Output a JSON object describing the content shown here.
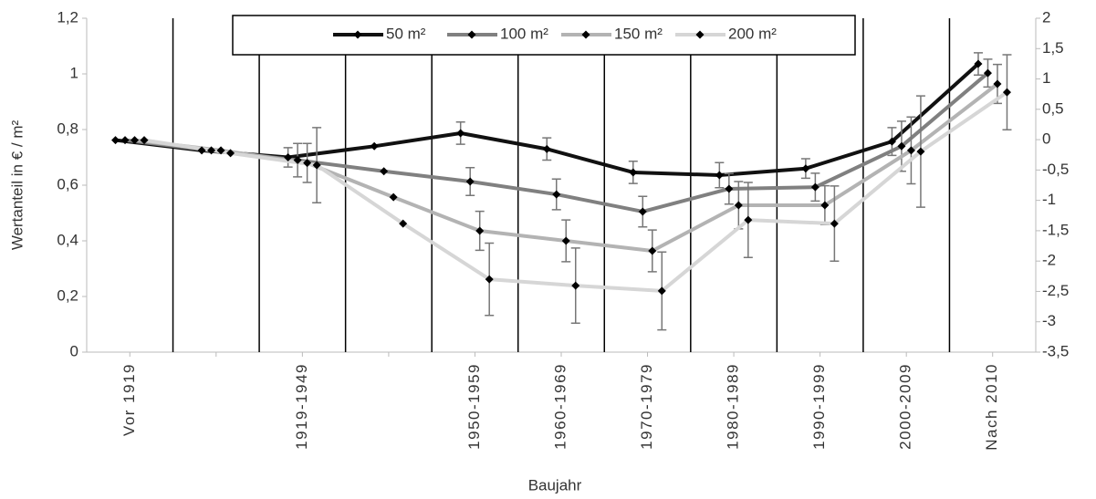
{
  "chart_data": {
    "type": "line",
    "y_label": "Wertanteil in € / m²",
    "x_label": "Baujahr",
    "categories": [
      "Vor 1919",
      null,
      "1919-1949",
      null,
      "1950-1959",
      "1960-1969",
      "1970-1979",
      "1980-1989",
      "1990-1999",
      "2000-2009",
      "Nach 2010"
    ],
    "series": [
      {
        "name": "50 m²",
        "color": "#111111",
        "values": [
          0.762,
          0.725,
          0.7,
          0.74,
          0.787,
          0.73,
          0.646,
          0.636,
          0.66,
          0.757,
          1.036
        ],
        "errors": [
          null,
          null,
          0.035,
          null,
          0.04,
          0.04,
          0.04,
          0.045,
          0.035,
          0.05,
          0.04
        ]
      },
      {
        "name": "100 m²",
        "color": "#808080",
        "values": [
          0.762,
          0.725,
          0.69,
          0.65,
          0.613,
          0.567,
          0.505,
          0.587,
          0.593,
          0.74,
          1.003
        ],
        "errors": [
          null,
          null,
          0.06,
          null,
          0.05,
          0.055,
          0.055,
          0.055,
          0.05,
          0.09,
          0.05
        ]
      },
      {
        "name": "150 m²",
        "color": "#b3b3b3",
        "values": [
          0.762,
          0.725,
          0.68,
          0.557,
          0.436,
          0.4,
          0.364,
          0.528,
          0.528,
          0.725,
          0.964
        ],
        "errors": [
          null,
          null,
          0.07,
          null,
          0.07,
          0.075,
          0.075,
          0.085,
          0.07,
          0.12,
          0.07
        ]
      },
      {
        "name": "200 m²",
        "color": "#d6d6d6",
        "values": [
          0.762,
          0.715,
          0.672,
          0.462,
          0.262,
          0.239,
          0.22,
          0.475,
          0.462,
          0.721,
          0.934
        ],
        "errors": [
          null,
          null,
          0.135,
          null,
          0.13,
          0.135,
          0.14,
          0.135,
          0.135,
          0.2,
          0.135
        ]
      }
    ],
    "ylim": [
      0,
      1.2
    ],
    "yticks": [
      0,
      {
        "value": 0.2,
        "label": "0,2"
      },
      {
        "value": 0.4,
        "label": "0,4"
      },
      {
        "value": 0.6,
        "label": "0,6"
      },
      {
        "value": 0.8,
        "label": "0,8"
      },
      1,
      {
        "value": 1.2,
        "label": "1,2"
      }
    ],
    "y2lim": [
      -3.5,
      2
    ],
    "y2ticks": [
      {
        "value": -3.5,
        "label": "-3,5"
      },
      -3,
      {
        "value": -2.5,
        "label": "-2,5"
      },
      -2,
      {
        "value": -1.5,
        "label": "-1,5"
      },
      -1,
      {
        "value": -0.5,
        "label": "-0,5"
      },
      0,
      {
        "value": 0.5,
        "label": "0,5"
      },
      1,
      {
        "value": 1.5,
        "label": "1,5"
      },
      2
    ],
    "legend": "top"
  }
}
